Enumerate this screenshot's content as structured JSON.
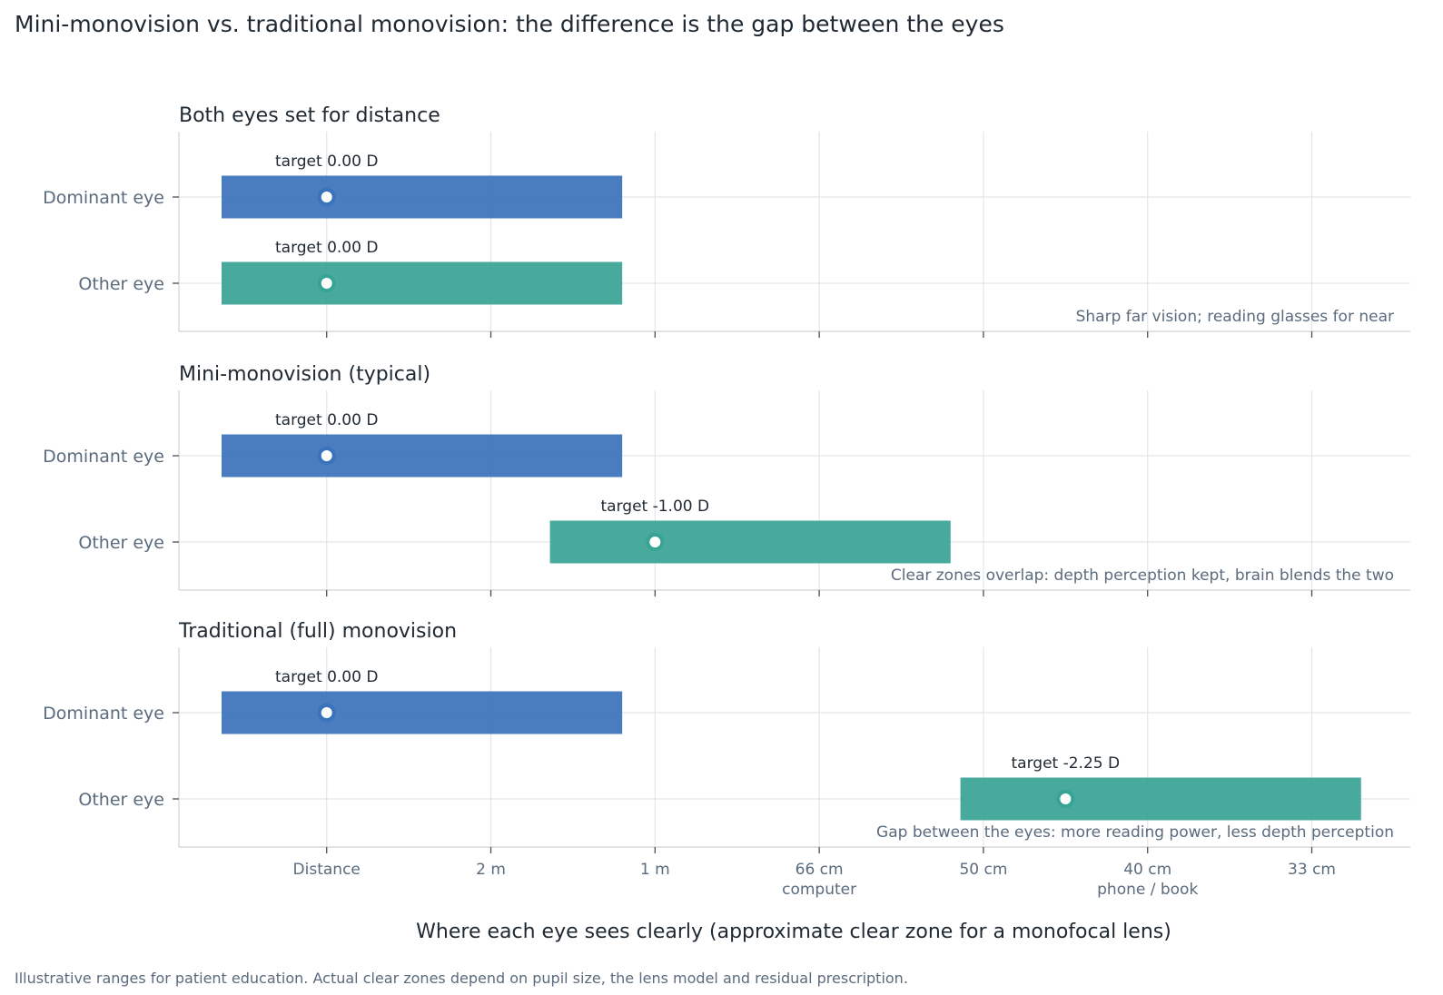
{
  "title": "Mini-monovision vs. traditional monovision: the difference is the gap between the eyes",
  "footnote": "Illustrative ranges for patient education. Actual clear zones depend on pupil size, the lens model and residual prescription.",
  "colors": {
    "dominant": "#3a72bb",
    "other": "#37a394",
    "text_dark": "#1f2933",
    "text_muted": "#5a6b7d",
    "grid": "#e3e5e8",
    "axis": "#d5d8dc"
  },
  "chart_data": {
    "type": "bar",
    "orientation": "horizontal-range",
    "xlabel": "Where each eye sees clearly (approximate clear zone for a monofocal lens)",
    "x_axis_unit": "diopters of focus (0 D = distance)",
    "x_ticks": [
      {
        "value": 0.0,
        "label": "Distance",
        "sublabel": ""
      },
      {
        "value": 0.5,
        "label": "2 m",
        "sublabel": ""
      },
      {
        "value": 1.0,
        "label": "1 m",
        "sublabel": ""
      },
      {
        "value": 1.5,
        "label": "66 cm",
        "sublabel": "computer"
      },
      {
        "value": 2.0,
        "label": "50 cm",
        "sublabel": ""
      },
      {
        "value": 2.5,
        "label": "40 cm",
        "sublabel": "phone / book"
      },
      {
        "value": 3.0,
        "label": "33 cm",
        "sublabel": ""
      }
    ],
    "xlim": [
      -0.45,
      3.3
    ],
    "grid": true,
    "panels": [
      {
        "title": "Both eyes set for distance",
        "note": "Sharp far vision; reading glasses for near",
        "rows": [
          {
            "name": "Dominant eye",
            "series": "dominant",
            "start": -0.32,
            "end": 0.9,
            "target": 0.0,
            "target_label": "target 0.00 D"
          },
          {
            "name": "Other eye",
            "series": "other",
            "start": -0.32,
            "end": 0.9,
            "target": 0.0,
            "target_label": "target 0.00 D"
          }
        ]
      },
      {
        "title": "Mini-monovision (typical)",
        "note": "Clear zones overlap: depth perception kept, brain blends the two",
        "rows": [
          {
            "name": "Dominant eye",
            "series": "dominant",
            "start": -0.32,
            "end": 0.9,
            "target": 0.0,
            "target_label": "target 0.00 D"
          },
          {
            "name": "Other eye",
            "series": "other",
            "start": 0.68,
            "end": 1.9,
            "target": 1.0,
            "target_label": "target -1.00 D"
          }
        ]
      },
      {
        "title": "Traditional (full) monovision",
        "note": "Gap between the eyes: more reading power, less depth perception",
        "rows": [
          {
            "name": "Dominant eye",
            "series": "dominant",
            "start": -0.32,
            "end": 0.9,
            "target": 0.0,
            "target_label": "target 0.00 D"
          },
          {
            "name": "Other eye",
            "series": "other",
            "start": 1.93,
            "end": 3.15,
            "target": 2.25,
            "target_label": "target -2.25 D"
          }
        ]
      }
    ]
  }
}
